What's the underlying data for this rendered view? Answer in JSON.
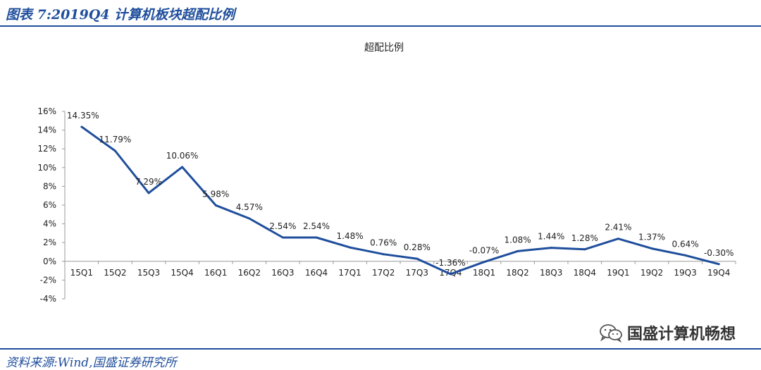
{
  "header": {
    "title": "图表 7:2019Q4 计算机板块超配比例"
  },
  "footer": {
    "source": "资料来源:Wind,国盛证券研究所"
  },
  "watermark": {
    "text": "国盛计算机畅想",
    "icon": "wechat-icon"
  },
  "colors": {
    "brand_blue": "#1f4e9c",
    "line": "#1f4e9c",
    "axis": "#9a9a9a"
  },
  "chart_data": {
    "type": "line",
    "title": "超配比例",
    "xlabel": "",
    "ylabel": "",
    "ylim": [
      -4,
      16
    ],
    "yticks": [
      16,
      14,
      12,
      10,
      8,
      6,
      4,
      2,
      0,
      -2,
      -4
    ],
    "ytick_labels": [
      "16%",
      "14%",
      "12%",
      "10%",
      "8%",
      "6%",
      "4%",
      "2%",
      "0%",
      "-2%",
      "-4%"
    ],
    "grid": false,
    "legend": "none",
    "categories": [
      "15Q1",
      "15Q2",
      "15Q3",
      "15Q4",
      "16Q1",
      "16Q2",
      "16Q3",
      "16Q4",
      "17Q1",
      "17Q2",
      "17Q3",
      "17Q4",
      "18Q1",
      "18Q2",
      "18Q3",
      "18Q4",
      "19Q1",
      "19Q2",
      "19Q3",
      "19Q4"
    ],
    "series": [
      {
        "values": [
          14.35,
          11.79,
          7.29,
          10.06,
          5.98,
          4.57,
          2.54,
          2.54,
          1.48,
          0.76,
          0.28,
          -1.36,
          -0.07,
          1.08,
          1.44,
          1.28,
          2.41,
          1.37,
          0.64,
          -0.3
        ],
        "labels": [
          "14.35%",
          "11.79%",
          "7.29%",
          "10.06%",
          "5.98%",
          "4.57%",
          "2.54%",
          "2.54%",
          "1.48%",
          "0.76%",
          "0.28%",
          "-1.36%",
          "-0.07%",
          "1.08%",
          "1.44%",
          "1.28%",
          "2.41%",
          "1.37%",
          "0.64%",
          "-0.30%"
        ]
      }
    ]
  }
}
